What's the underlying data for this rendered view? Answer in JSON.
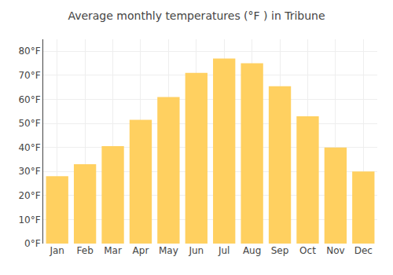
{
  "chart_data": {
    "type": "bar",
    "title": "Average monthly temperatures (°F ) in Tribune",
    "categories": [
      "Jan",
      "Feb",
      "Mar",
      "Apr",
      "May",
      "Jun",
      "Jul",
      "Aug",
      "Sep",
      "Oct",
      "Nov",
      "Dec"
    ],
    "values": [
      28,
      33,
      40.5,
      51.5,
      61,
      71,
      77,
      75,
      65.5,
      53,
      40,
      30
    ],
    "color": "#FFD060",
    "ylim": [
      0,
      85
    ],
    "yticks": [
      {
        "value": 0,
        "label": "0°F"
      },
      {
        "value": 10,
        "label": "10°F"
      },
      {
        "value": 20,
        "label": "20°F"
      },
      {
        "value": 30,
        "label": "30°F"
      },
      {
        "value": 40,
        "label": "40°F"
      },
      {
        "value": 50,
        "label": "50°F"
      },
      {
        "value": 60,
        "label": "60°F"
      },
      {
        "value": 70,
        "label": "70°F"
      },
      {
        "value": 80,
        "label": "80°F"
      }
    ],
    "grid": true
  }
}
